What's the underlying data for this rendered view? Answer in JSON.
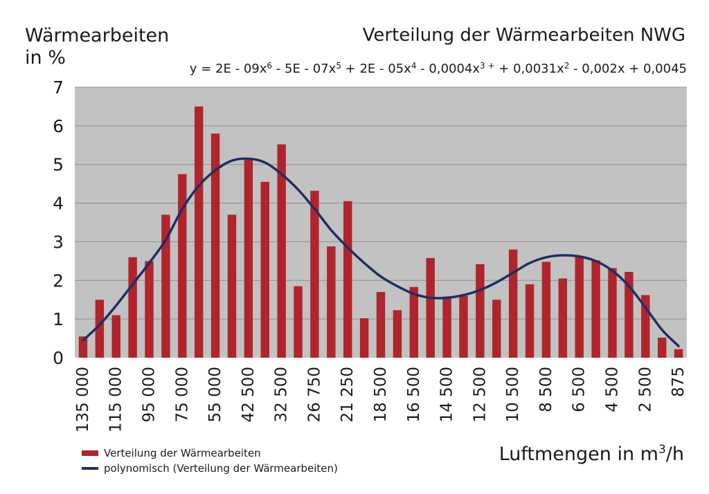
{
  "chart_data": {
    "type": "bar",
    "title": "Verteilung der Wärmearbeiten NWG",
    "equation": {
      "prefix": "y = 2E - 09x",
      "p1": "6",
      "t2": " - 5E - 07x",
      "p2": "5",
      "t3": " + 2E - 05x",
      "p3": "4",
      "t4": " - 0,0004x",
      "p4": "3 +",
      "t5": " + 0,0031x",
      "p5": "2",
      "t6": " - 0,002x + 0,0045"
    },
    "ylabel_line1": "Wärmearbeiten",
    "ylabel_line2": "in %",
    "xlabel_text": "Luftmengen in m",
    "xlabel_sup": "3",
    "xlabel_tail": "/h",
    "ylim": [
      0,
      7
    ],
    "yticks": [
      "0",
      "1",
      "2",
      "3",
      "4",
      "5",
      "6",
      "7"
    ],
    "xtick_labels": [
      "135 000",
      "115 000",
      "95 000",
      "75 000",
      "55 000",
      "42 500",
      "32 500",
      "26 750",
      "21 250",
      "18 500",
      "16 500",
      "14 500",
      "12 500",
      "10 500",
      "8 500",
      "6 500",
      "4 500",
      "2 500",
      "875"
    ],
    "grid": true,
    "legend_position": "bottom-left",
    "series": [
      {
        "name": "Verteilung der Wärmearbeiten",
        "kind": "bar",
        "color": "#b0242c",
        "values": [
          0.55,
          1.5,
          1.1,
          2.6,
          2.5,
          3.7,
          4.75,
          6.5,
          5.8,
          3.7,
          5.12,
          4.55,
          5.52,
          1.85,
          4.32,
          2.88,
          4.05,
          1.02,
          1.7,
          1.23,
          1.83,
          2.58,
          1.58,
          1.6,
          2.42,
          1.5,
          2.8,
          1.9,
          2.48,
          2.05,
          2.62,
          2.52,
          2.32,
          2.22,
          1.62,
          0.52,
          0.22
        ]
      },
      {
        "name": "polynomisch (Verteilung der Wärmearbeiten)",
        "kind": "line",
        "color": "#1e2e63",
        "values": [
          0.45,
          0.85,
          1.35,
          1.9,
          2.45,
          3.05,
          3.85,
          4.45,
          4.85,
          5.1,
          5.15,
          5.05,
          4.75,
          4.35,
          3.85,
          3.3,
          2.85,
          2.45,
          2.1,
          1.85,
          1.65,
          1.55,
          1.55,
          1.62,
          1.75,
          1.95,
          2.2,
          2.45,
          2.6,
          2.65,
          2.62,
          2.5,
          2.25,
          1.85,
          1.3,
          0.72,
          0.3
        ]
      }
    ]
  }
}
